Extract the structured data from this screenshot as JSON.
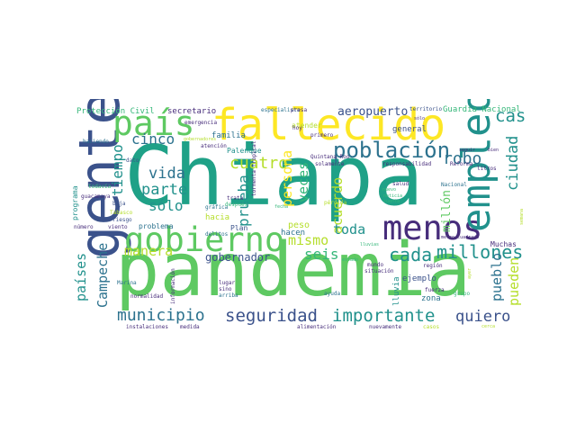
{
  "palette": {
    "green": "#5ec962",
    "teal": "#21918c",
    "tealblue": "#2c728e",
    "blue": "#3b528b",
    "purple": "#472d7b",
    "darkpurple": "#440154",
    "yellow": "#fde725",
    "lime": "#b5de2b",
    "mint": "#35b779",
    "emerald": "#1fa187"
  },
  "words": {
    "chiapa": "Chiapa",
    "pandemia": "pandemia",
    "gente": "gente",
    "fallecido": "fallecido",
    "gobierno": "gobierno",
    "pais": "país",
    "menos": "menos",
    "empleo": "empleo",
    "poblacion": "población",
    "municipio": "municipio",
    "seguridad": "seguridad",
    "importante": "importante",
    "quiero": "quiero",
    "millones": "millones",
    "cada": "cada",
    "casa": "casa",
    "robo": "robo",
    "ciudad": "ciudad",
    "cinco": "cinco",
    "cuatro": "cuatro",
    "vida": "vida",
    "parte": "parte",
    "solo": "sólo",
    "tiempo": "tiempo",
    "prueba": "prueba",
    "persona": "persona",
    "veces": "veces",
    "acuerdo": "acuerdo",
    "mismo": "mismo",
    "seis": "seis",
    "toda": "toda",
    "millon": "millón",
    "manera": "manera",
    "gobernador": "gobernador",
    "campeche": "Campeche",
    "paises": "países",
    "pueblo": "pueblo",
    "pueden": "pueden",
    "aeropuerto": "aeropuerto",
    "proteccion_civil": "Protección Civil",
    "guardia_nacional": "Guardia Nacional",
    "secretario": "secretario",
    "familia": "familia",
    "palenque": "Palenque",
    "general": "general",
    "peso": "peso",
    "hacen": "hacen",
    "problema": "problema",
    "plan": "Plan",
    "hacia": "hacia",
    "ejemplo": "ejemplo",
    "zona": "zona",
    "lluvia": "lluvia",
    "muchas": "Muchas",
    "programa": "programa",
    "atender": "atender",
    "nacional": "Nacional",
    "especialista": "especialista",
    "territorio": "territorio",
    "emergencia": "emergencia",
    "haciendo": "haciendo",
    "dato": "dato",
    "escuela": "escuela",
    "todavia": "todavía",
    "guacamaya": "guacamaya",
    "baja": "baja",
    "riesgo": "riesgo",
    "tabasco": "Tabasco",
    "viento": "viento",
    "numero": "número",
    "grafica": "gráfica",
    "trata": "trata",
    "despues": "después",
    "delitos": "delitos",
    "tormenta_tropical": "tormenta tropical",
    "presa": "presa",
    "hoy": "hoy",
    "primero": "primero",
    "atencion": "atención",
    "gobernadores": "gobernadores",
    "quintana_roo": "Quintana Roo",
    "solamente": "solamente",
    "salud": "salud",
    "nuevo": "nuevo",
    "noticia": "noticia",
    "cuenta": "cuenta",
    "responsabilidad": "responsabilidad",
    "reforma": "Reforma",
    "litros": "litros",
    "seguir": "seguir",
    "bien": "bien",
    "solo_small": "sólo",
    "marina": "Marina",
    "informacion": "información",
    "normalidad": "normalidad",
    "lugar": "lugar",
    "sino": "sino",
    "arriba": "arriba",
    "instalaciones": "instalaciones",
    "medida": "medida",
    "alimentacion": "alimentación",
    "mundo": "mundo",
    "situacion": "situación",
    "ayuda": "ayuda",
    "region": "región",
    "fuerza": "fuerza",
    "grupo": "grupo",
    "metro_cuadrado": "metro cuadrado",
    "nuevamente": "nuevamente",
    "casos": "casos",
    "perdida": "pérdida",
    "estado": "estado",
    "lluvias": "lluvias",
    "fecha": "fecha",
    "cerca": "cerca",
    "ayer": "ayer",
    "semana": "semana"
  }
}
